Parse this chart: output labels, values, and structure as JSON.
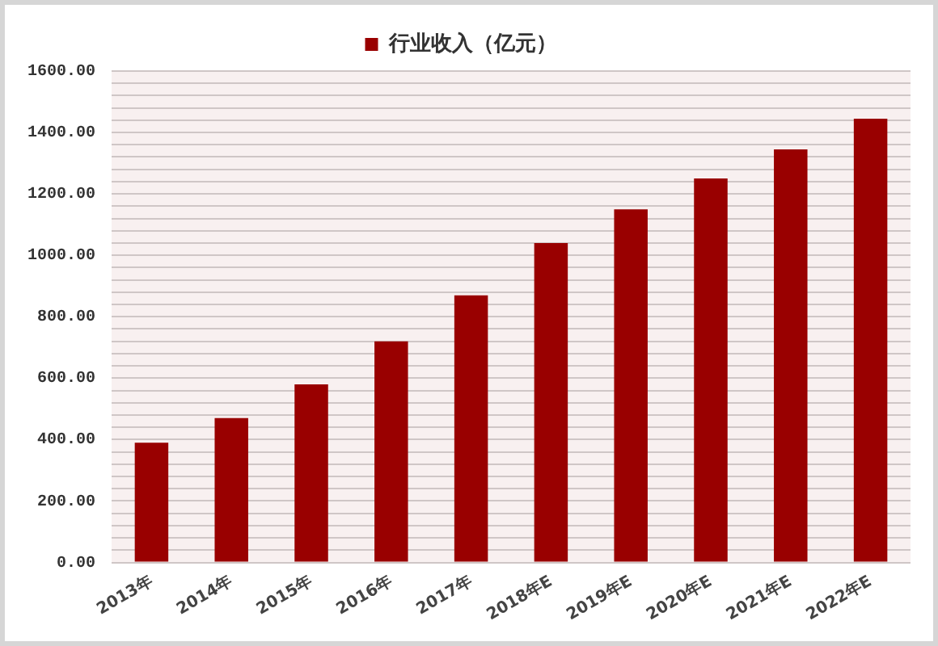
{
  "chart_data": {
    "type": "bar",
    "categories": [
      "2013年",
      "2014年",
      "2015年",
      "2016年",
      "2017年",
      "2018年E",
      "2019年E",
      "2020年E",
      "2021年E",
      "2022年E"
    ],
    "series": [
      {
        "name": "行业收入（亿元）",
        "color": "#990000",
        "values": [
          390,
          470,
          580,
          720,
          870,
          1040,
          1150,
          1250,
          1345,
          1445
        ]
      }
    ],
    "ylim": [
      0,
      1600
    ],
    "yticks": [
      {
        "value": 0,
        "label": "0.00"
      },
      {
        "value": 40,
        "label": null
      },
      {
        "value": 80,
        "label": null
      },
      {
        "value": 120,
        "label": null
      },
      {
        "value": 160,
        "label": null
      },
      {
        "value": 200,
        "label": "200.00"
      },
      {
        "value": 240,
        "label": null
      },
      {
        "value": 280,
        "label": null
      },
      {
        "value": 320,
        "label": null
      },
      {
        "value": 360,
        "label": null
      },
      {
        "value": 400,
        "label": "400.00"
      },
      {
        "value": 440,
        "label": null
      },
      {
        "value": 480,
        "label": null
      },
      {
        "value": 520,
        "label": null
      },
      {
        "value": 560,
        "label": null
      },
      {
        "value": 600,
        "label": "600.00"
      },
      {
        "value": 640,
        "label": null
      },
      {
        "value": 680,
        "label": null
      },
      {
        "value": 720,
        "label": null
      },
      {
        "value": 760,
        "label": null
      },
      {
        "value": 800,
        "label": "800.00"
      },
      {
        "value": 840,
        "label": null
      },
      {
        "value": 880,
        "label": null
      },
      {
        "value": 920,
        "label": null
      },
      {
        "value": 960,
        "label": null
      },
      {
        "value": 1000,
        "label": "1000.00"
      },
      {
        "value": 1040,
        "label": null
      },
      {
        "value": 1080,
        "label": null
      },
      {
        "value": 1120,
        "label": null
      },
      {
        "value": 1160,
        "label": null
      },
      {
        "value": 1200,
        "label": "1200.00"
      },
      {
        "value": 1240,
        "label": null
      },
      {
        "value": 1280,
        "label": null
      },
      {
        "value": 1320,
        "label": null
      },
      {
        "value": 1360,
        "label": null
      },
      {
        "value": 1400,
        "label": "1400.00"
      },
      {
        "value": 1440,
        "label": null
      },
      {
        "value": 1480,
        "label": null
      },
      {
        "value": 1520,
        "label": null
      },
      {
        "value": 1560,
        "label": null
      },
      {
        "value": 1600,
        "label": "1600.00"
      }
    ],
    "grid": "y",
    "legend": "top"
  }
}
